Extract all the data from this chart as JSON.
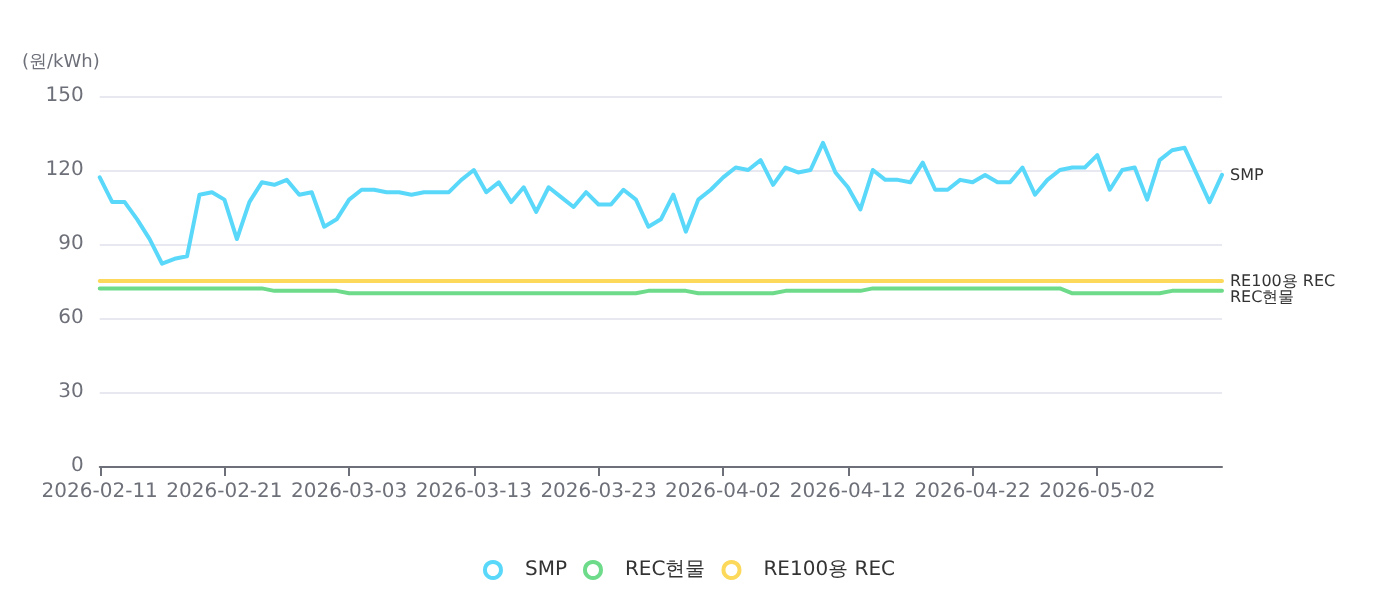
{
  "chart_data": {
    "type": "line",
    "ylabel": "(원/kWh)",
    "x": [
      "2026-02-11",
      "2026-02-12",
      "2026-02-13",
      "2026-02-14",
      "2026-02-15",
      "2026-02-16",
      "2026-02-17",
      "2026-02-18",
      "2026-02-19",
      "2026-02-20",
      "2026-02-21",
      "2026-02-22",
      "2026-02-23",
      "2026-02-24",
      "2026-02-25",
      "2026-02-26",
      "2026-02-27",
      "2026-02-28",
      "2026-03-01",
      "2026-03-02",
      "2026-03-03",
      "2026-03-04",
      "2026-03-05",
      "2026-03-06",
      "2026-03-07",
      "2026-03-08",
      "2026-03-09",
      "2026-03-10",
      "2026-03-11",
      "2026-03-12",
      "2026-03-13",
      "2026-03-14",
      "2026-03-15",
      "2026-03-16",
      "2026-03-17",
      "2026-03-18",
      "2026-03-19",
      "2026-03-20",
      "2026-03-21",
      "2026-03-22",
      "2026-03-23",
      "2026-03-24",
      "2026-03-25",
      "2026-03-26",
      "2026-03-27",
      "2026-03-28",
      "2026-03-29",
      "2026-03-30",
      "2026-03-31",
      "2026-04-01",
      "2026-04-02",
      "2026-04-03",
      "2026-04-04",
      "2026-04-05",
      "2026-04-06",
      "2026-04-07",
      "2026-04-08",
      "2026-04-09",
      "2026-04-10",
      "2026-04-11",
      "2026-04-12",
      "2026-04-13",
      "2026-04-14",
      "2026-04-15",
      "2026-04-16",
      "2026-04-17",
      "2026-04-18",
      "2026-04-19",
      "2026-04-20",
      "2026-04-21",
      "2026-04-22",
      "2026-04-23",
      "2026-04-24",
      "2026-04-25",
      "2026-04-26",
      "2026-04-27",
      "2026-04-28",
      "2026-04-29",
      "2026-04-30",
      "2026-05-01",
      "2026-05-02",
      "2026-05-03",
      "2026-05-04",
      "2026-05-05",
      "2026-05-06",
      "2026-05-07",
      "2026-05-08",
      "2026-05-09",
      "2026-05-10",
      "2026-05-11",
      "2026-05-12"
    ],
    "xticks": [
      "2026-02-11",
      "2026-02-21",
      "2026-03-03",
      "2026-03-13",
      "2026-03-23",
      "2026-04-02",
      "2026-04-12",
      "2026-04-22",
      "2026-05-02"
    ],
    "xlim": [
      "2026-02-11",
      "2026-05-12"
    ],
    "ylim": [
      0,
      150
    ],
    "yticks": [
      0,
      30,
      60,
      90,
      120,
      150
    ],
    "grid": "y",
    "legend": "bottom",
    "marker": "none",
    "line_style": "solid",
    "series": [
      {
        "name": "SMP",
        "color": "#5ad8fa",
        "values": [
          117,
          107,
          107,
          100,
          92,
          82,
          84,
          85,
          110,
          111,
          108,
          92,
          107,
          115,
          114,
          116,
          110,
          111,
          97,
          100,
          108,
          112,
          112,
          111,
          111,
          110,
          111,
          111,
          111,
          116,
          120,
          111,
          115,
          107,
          113,
          103,
          113,
          109,
          105,
          111,
          106,
          106,
          112,
          108,
          97,
          100,
          110,
          95,
          108,
          112,
          117,
          121,
          120,
          124,
          114,
          121,
          119,
          120,
          131,
          119,
          113,
          104,
          120,
          116,
          116,
          115,
          123,
          112,
          112,
          116,
          115,
          118,
          115,
          115,
          121,
          110,
          116,
          120,
          121,
          121,
          126,
          112,
          120,
          121,
          108,
          124,
          128,
          129,
          118,
          107,
          118
        ]
      },
      {
        "name": "REC현물",
        "color": "#6ddb8a",
        "values": [
          72,
          72,
          72,
          72,
          72,
          72,
          72,
          72,
          72,
          72,
          72,
          72,
          72,
          72,
          71,
          71,
          71,
          71,
          71,
          71,
          70,
          70,
          70,
          70,
          70,
          70,
          70,
          70,
          70,
          70,
          70,
          70,
          70,
          70,
          70,
          70,
          70,
          70,
          70,
          70,
          70,
          70,
          70,
          70,
          71,
          71,
          71,
          71,
          70,
          70,
          70,
          70,
          70,
          70,
          70,
          71,
          71,
          71,
          71,
          71,
          71,
          71,
          72,
          72,
          72,
          72,
          72,
          72,
          72,
          72,
          72,
          72,
          72,
          72,
          72,
          72,
          72,
          72,
          70,
          70,
          70,
          70,
          70,
          70,
          70,
          70,
          71,
          71,
          71,
          71,
          71
        ]
      },
      {
        "name": "RE100용 REC",
        "color": "#fcd95a",
        "values": [
          75,
          75,
          75,
          75,
          75,
          75,
          75,
          75,
          75,
          75,
          75,
          75,
          75,
          75,
          75,
          75,
          75,
          75,
          75,
          75,
          75,
          75,
          75,
          75,
          75,
          75,
          75,
          75,
          75,
          75,
          75,
          75,
          75,
          75,
          75,
          75,
          75,
          75,
          75,
          75,
          75,
          75,
          75,
          75,
          75,
          75,
          75,
          75,
          75,
          75,
          75,
          75,
          75,
          75,
          75,
          75,
          75,
          75,
          75,
          75,
          75,
          75,
          75,
          75,
          75,
          75,
          75,
          75,
          75,
          75,
          75,
          75,
          75,
          75,
          75,
          75,
          75,
          75,
          75,
          75,
          75,
          75,
          75,
          75,
          75,
          75,
          75,
          75,
          75,
          75,
          75
        ]
      }
    ]
  }
}
